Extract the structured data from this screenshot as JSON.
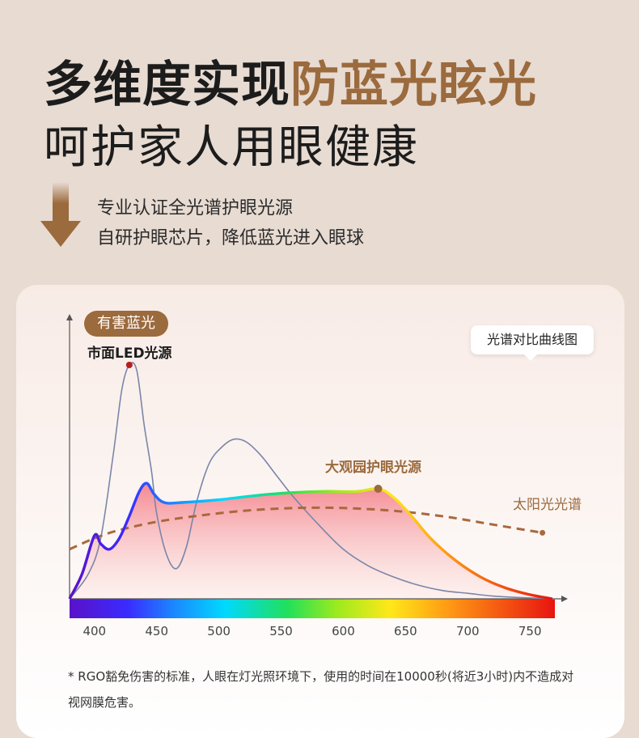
{
  "header": {
    "title_black": "多维度实现",
    "title_accent": "防蓝光眩光",
    "subtitle": "呵护家人用眼健康",
    "desc_line1": "专业认证全光谱护眼光源",
    "desc_line2": "自研护眼芯片，降低蓝光进入眼球"
  },
  "colors": {
    "accent": "#9b6a3d",
    "background": "#e7dbd2",
    "sun_curve": "#a9683d",
    "led_curve": "#7a86a8"
  },
  "chart_data": {
    "type": "line",
    "tag": "光谱对比曲线图",
    "pill_label": "有害蓝光",
    "xlabel": "",
    "ylabel": "",
    "xlim": [
      380,
      770
    ],
    "ylim": [
      0,
      1
    ],
    "x_ticks": [
      400,
      450,
      500,
      550,
      600,
      650,
      700,
      750
    ],
    "x_tick_labels": [
      "400",
      "450",
      "500",
      "550",
      "600",
      "650",
      "700",
      "750"
    ],
    "series": [
      {
        "name": "市面LED光源",
        "x": [
          380,
          395,
          405,
          415,
          422,
          428,
          434,
          440,
          446,
          450,
          458,
          466,
          474,
          482,
          492,
          502,
          512,
          522,
          534,
          546,
          560,
          580,
          600,
          620,
          640,
          660,
          680,
          700,
          720,
          740,
          770
        ],
        "y": [
          0.0,
          0.09,
          0.22,
          0.52,
          0.76,
          0.85,
          0.83,
          0.63,
          0.46,
          0.31,
          0.16,
          0.11,
          0.19,
          0.35,
          0.49,
          0.55,
          0.58,
          0.57,
          0.52,
          0.45,
          0.37,
          0.27,
          0.18,
          0.12,
          0.08,
          0.05,
          0.03,
          0.02,
          0.01,
          0.005,
          0.0
        ]
      },
      {
        "name": "大观园护眼光源",
        "x": [
          380,
          390,
          400,
          405,
          412,
          420,
          428,
          436,
          442,
          448,
          456,
          470,
          500,
          540,
          580,
          610,
          628,
          640,
          655,
          670,
          690,
          710,
          730,
          750,
          768
        ],
        "y": [
          0.0,
          0.09,
          0.23,
          0.2,
          0.18,
          0.22,
          0.3,
          0.39,
          0.42,
          0.38,
          0.35,
          0.35,
          0.36,
          0.38,
          0.39,
          0.39,
          0.4,
          0.37,
          0.3,
          0.22,
          0.14,
          0.08,
          0.04,
          0.015,
          0.0
        ]
      },
      {
        "name": "太阳光光谱",
        "x": [
          380,
          400,
          420,
          450,
          480,
          520,
          560,
          600,
          640,
          680,
          720,
          760
        ],
        "y": [
          0.18,
          0.22,
          0.25,
          0.28,
          0.3,
          0.32,
          0.33,
          0.33,
          0.32,
          0.3,
          0.27,
          0.24
        ]
      }
    ],
    "annotations": [
      {
        "text": "大观园护眼光源",
        "x": 628,
        "y": 0.4
      },
      {
        "text": "市面LED光源",
        "x": 428,
        "y": 0.85
      }
    ],
    "grid": false,
    "legend": "inline labels"
  },
  "footnote": "* RGO豁免伤害的标准，人眼在灯光照环境下，使用的时间在10000秒(将近3小时)内不造成对视网膜危害。"
}
